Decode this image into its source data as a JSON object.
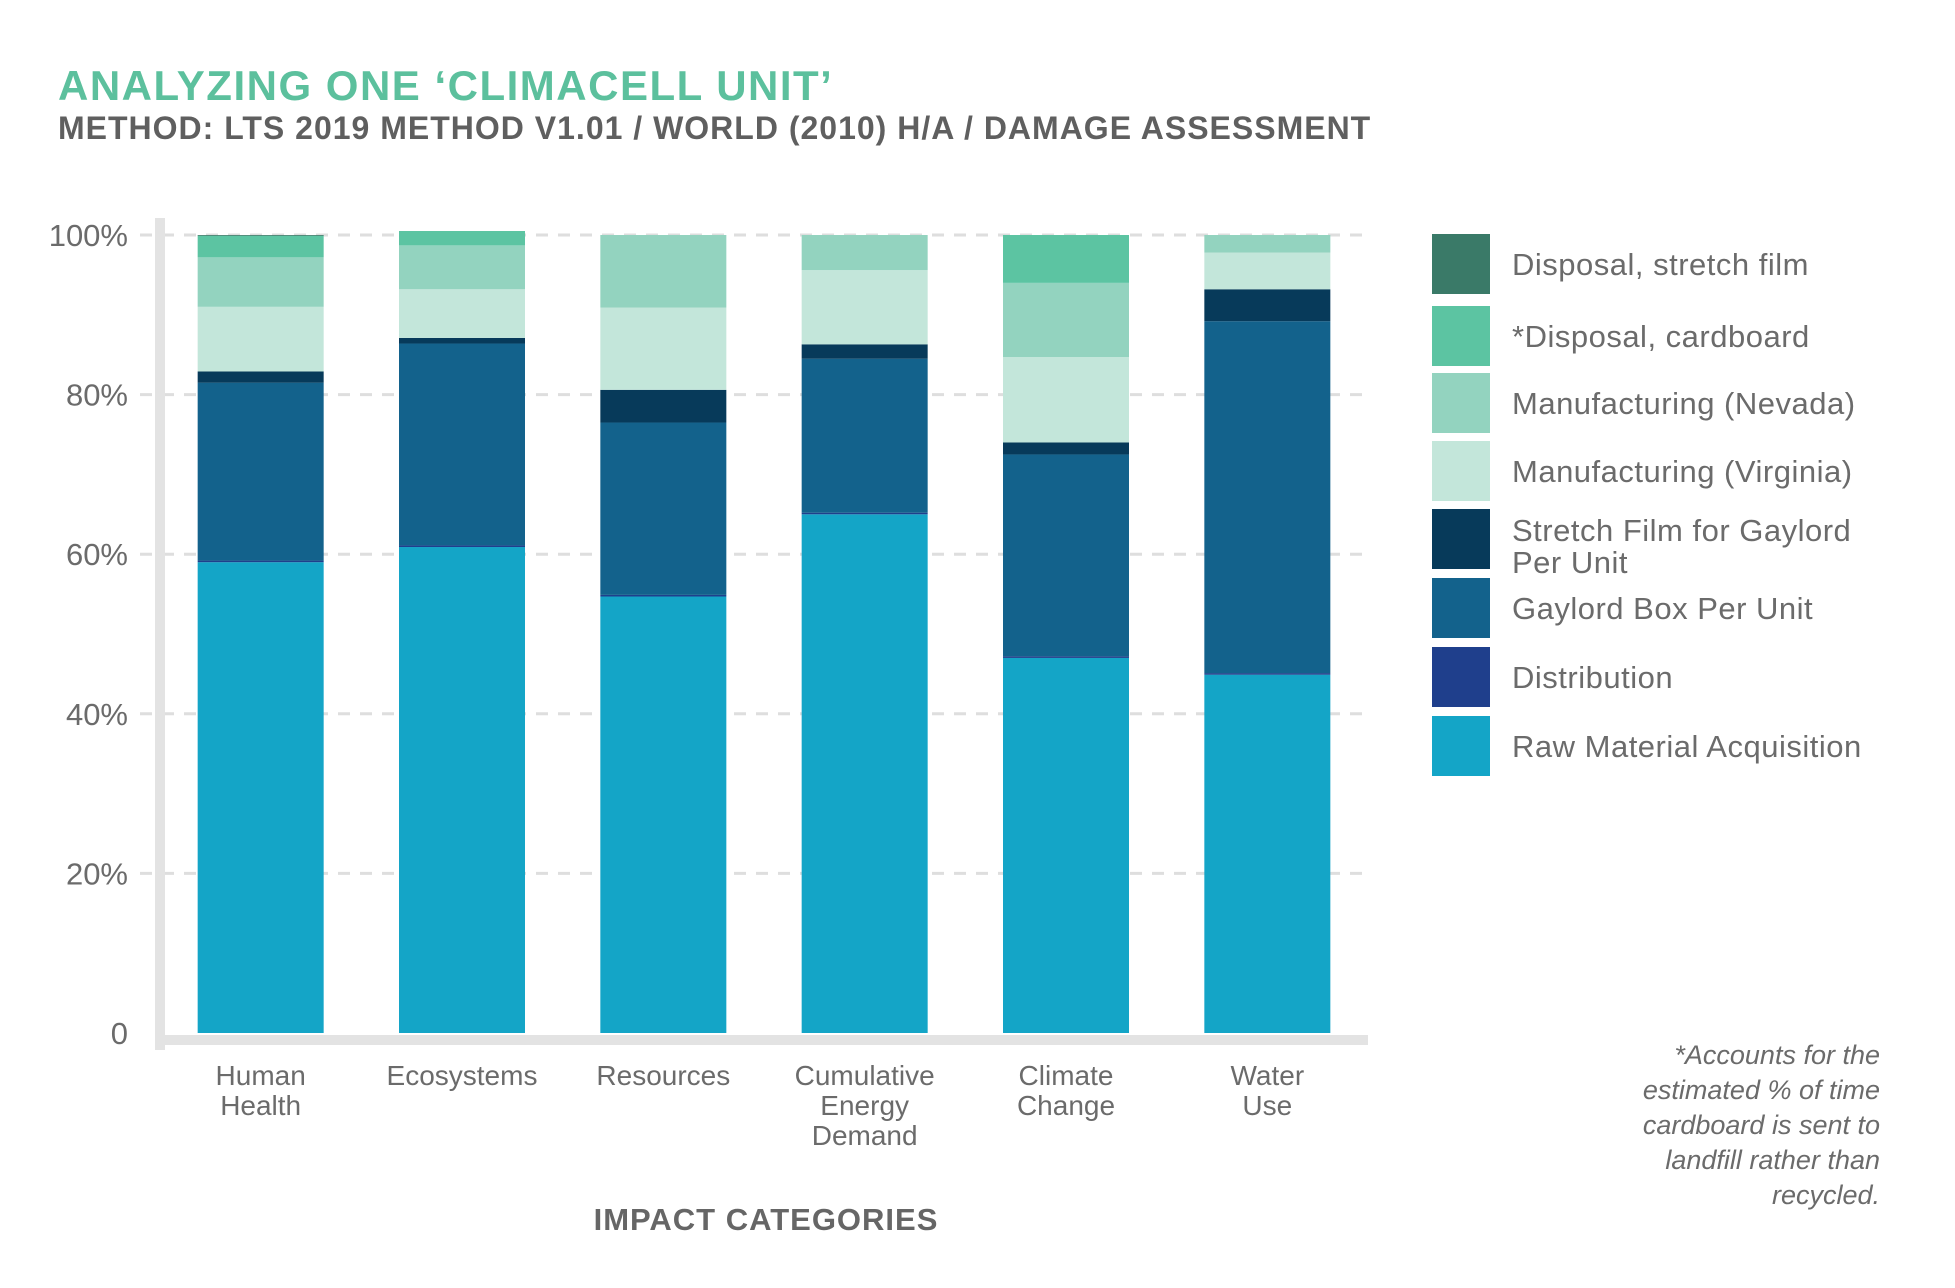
{
  "header": {
    "title": "ANALYZING ONE ‘CLIMACELL UNIT’",
    "subtitle": "METHOD: LTS 2019 METHOD V1.01 / WORLD (2010) H/A / DAMAGE ASSESSMENT"
  },
  "footnote": "*Accounts for the estimated % of time cardboard is sent to landfill rather than recycled.",
  "chart_data": {
    "type": "bar",
    "stacked": true,
    "xlabel": "IMPACT CATEGORIES",
    "ylabel": "",
    "ylim": [
      0,
      100
    ],
    "y_ticks": [
      "0",
      "20%",
      "40%",
      "60%",
      "80%",
      "100%"
    ],
    "grid": true,
    "legend_position": "right",
    "categories": [
      [
        "Human",
        "Health"
      ],
      [
        "Ecosystems"
      ],
      [
        "Resources"
      ],
      [
        "Cumulative",
        "Energy",
        "Demand"
      ],
      [
        "Climate",
        "Change"
      ],
      [
        "Water",
        "Use"
      ]
    ],
    "series": [
      {
        "name": "Raw Material Acquisition",
        "color": "#14a5c7",
        "values": [
          59.0,
          60.9,
          54.7,
          65.0,
          47.0,
          44.9
        ]
      },
      {
        "name": "Distribution",
        "color": "#1f3f8c",
        "values": [
          0.2,
          0.2,
          0.2,
          0.2,
          0.2,
          0.2
        ]
      },
      {
        "name": "Gaylord Box Per Unit",
        "color": "#13628c",
        "values": [
          22.3,
          25.3,
          21.6,
          19.3,
          25.3,
          44.1
        ]
      },
      {
        "name": "Stretch Film for Gaylord Per Unit",
        "color": "#073a5a",
        "values": [
          1.4,
          0.7,
          4.1,
          1.8,
          1.5,
          4.0
        ]
      },
      {
        "name": "Manufacturing (Virginia)",
        "color": "#c3e6da",
        "values": [
          8.1,
          6.1,
          10.3,
          9.3,
          10.7,
          4.6
        ]
      },
      {
        "name": "Manufacturing (Nevada)",
        "color": "#93d3bf",
        "values": [
          6.2,
          5.5,
          9.1,
          4.4,
          9.3,
          2.2
        ]
      },
      {
        "name": "Disposal, cardboard",
        "color": "#5cc4a2",
        "values": [
          2.7,
          1.8,
          0.0,
          0.0,
          6.0,
          0.0
        ]
      },
      {
        "name": "Disposal, stretch film",
        "color": "#3a7a68",
        "values": [
          0.1,
          0.0,
          0.0,
          0.0,
          0.0,
          0.0
        ]
      }
    ]
  },
  "legend": {
    "items": [
      {
        "label": "Disposal, stretch film",
        "color": "#3a7a68"
      },
      {
        "label": "*Disposal, cardboard",
        "color": "#5cc4a2"
      },
      {
        "label": "Manufacturing (Nevada)",
        "color": "#93d3bf"
      },
      {
        "label": "Manufacturing (Virginia)",
        "color": "#c3e6da"
      },
      {
        "label": "Stretch Film for Gaylord Per Unit",
        "color": "#073a5a"
      },
      {
        "label": "Gaylord Box Per Unit",
        "color": "#13628c"
      },
      {
        "label": "Distribution",
        "color": "#1f3f8c"
      },
      {
        "label": "Raw Material Acquisition",
        "color": "#14a5c7"
      }
    ]
  }
}
